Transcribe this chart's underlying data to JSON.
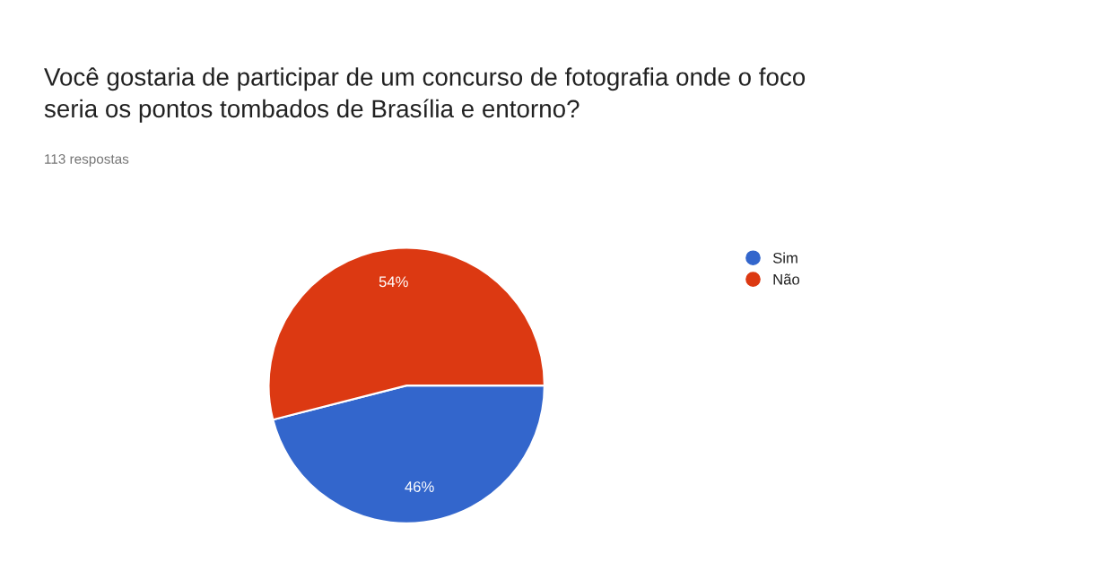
{
  "chart_data": {
    "type": "pie",
    "title": "Você gostaria de participar de um concurso de fotografia onde o foco\nseria os pontos tombados de Brasília e entorno?",
    "subtitle": "113 respostas",
    "categories": [
      "Sim",
      "Não"
    ],
    "values": [
      46,
      54
    ],
    "colors": [
      "#3366cc",
      "#dc3912"
    ],
    "value_labels": [
      "46%",
      "54%"
    ],
    "legend": "top right"
  }
}
